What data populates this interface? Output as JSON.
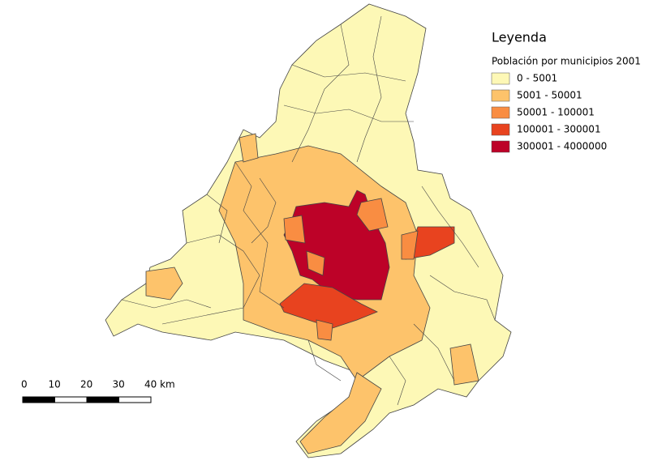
{
  "legend": {
    "title": "Leyenda",
    "subtitle": "Población por municipios 2001",
    "classes": [
      {
        "label": "0 - 5001",
        "color": "#fdf8b6"
      },
      {
        "label": "5001 - 50001",
        "color": "#fdc36b"
      },
      {
        "label": "50001 - 100001",
        "color": "#f98d42"
      },
      {
        "label": "100001 - 300001",
        "color": "#e8431f"
      },
      {
        "label": "300001 - 4000000",
        "color": "#bd0228"
      }
    ]
  },
  "scale_bar": {
    "labels": [
      "0",
      "10",
      "20",
      "30",
      "40 km"
    ]
  }
}
